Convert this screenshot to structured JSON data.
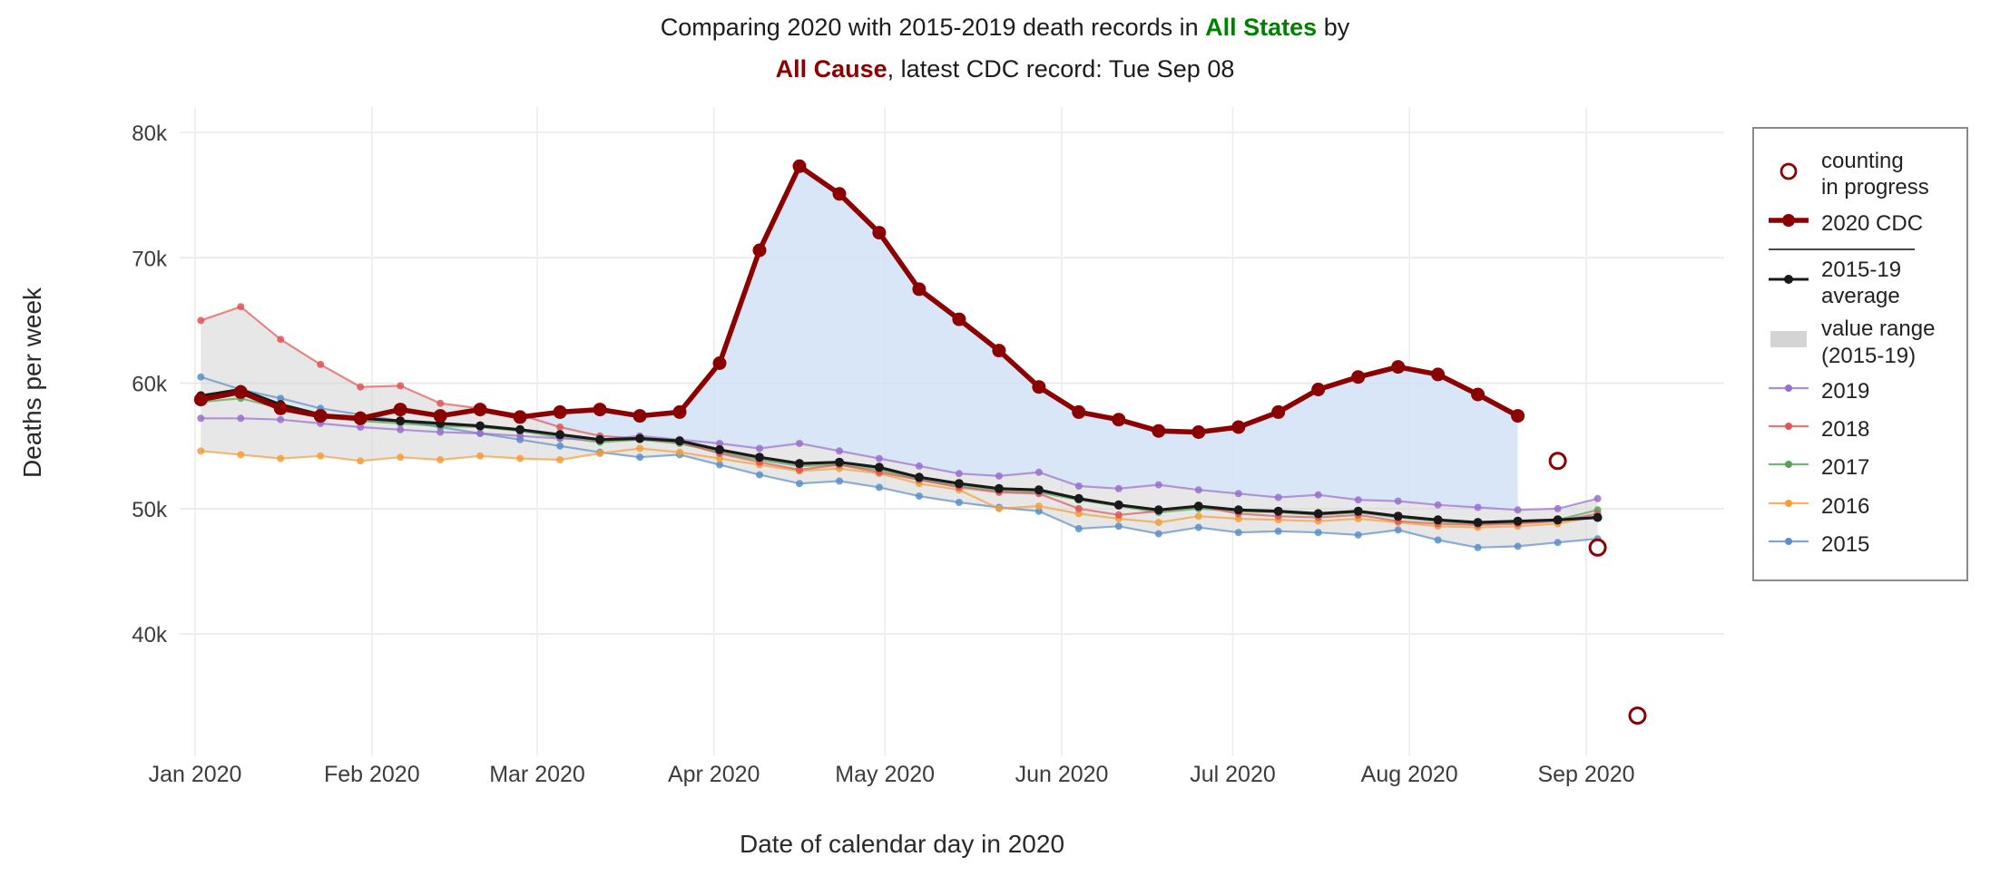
{
  "title": {
    "line1_prefix": "Comparing 2020 with 2015-2019 death records in ",
    "line1_highlight": "All States",
    "line1_suffix": " by",
    "line2_highlight": "All Cause",
    "line2_suffix": ", latest CDC record: Tue Sep 08",
    "states_color": "#008000",
    "cause_color": "#8B0000"
  },
  "legend": {
    "position": "right",
    "items": [
      {
        "id": "counting-in-progress",
        "label": "counting\nin progress",
        "marker": "open-circle",
        "color": "#8B0000"
      },
      {
        "id": "2020-cdc",
        "label": "2020 CDC",
        "marker": "thick-line-dot",
        "color": "#8B0000"
      },
      {
        "id": "divider",
        "label": "",
        "marker": "divider",
        "color": "#4a4a4a"
      },
      {
        "id": "2015-19-average",
        "label": "2015-19\naverage",
        "marker": "line-dot",
        "color": "#1a1a1a"
      },
      {
        "id": "value-range",
        "label": "value range\n(2015-19)",
        "marker": "band",
        "color": "#d4d4d4"
      },
      {
        "id": "2019",
        "label": "2019",
        "marker": "thin-line-dot",
        "color": "#9a6fce"
      },
      {
        "id": "2018",
        "label": "2018",
        "marker": "thin-line-dot",
        "color": "#e05555"
      },
      {
        "id": "2017",
        "label": "2017",
        "marker": "thin-line-dot",
        "color": "#52a352"
      },
      {
        "id": "2016",
        "label": "2016",
        "marker": "thin-line-dot",
        "color": "#f59e38"
      },
      {
        "id": "2015",
        "label": "2015",
        "marker": "thin-line-dot",
        "color": "#5b8fc9"
      }
    ]
  },
  "chart_data": {
    "type": "line",
    "title": "Comparing 2020 with 2015-2019 death records in All States by All Cause, latest CDC record: Tue Sep 08",
    "xlabel": "Date of calendar day in 2020",
    "ylabel": "Deaths per week",
    "y_unit": "thousands of deaths per week",
    "ylim_thousands": [
      32,
      82
    ],
    "grid": true,
    "legend_position": "right",
    "y_ticks": [
      {
        "value": 40,
        "label": "40k"
      },
      {
        "value": 50,
        "label": "50k"
      },
      {
        "value": 60,
        "label": "60k"
      },
      {
        "value": 70,
        "label": "70k"
      },
      {
        "value": 80,
        "label": "80k"
      }
    ],
    "x_ticks": [
      {
        "day": 0,
        "label": "Jan 2020"
      },
      {
        "day": 31,
        "label": "Feb 2020"
      },
      {
        "day": 60,
        "label": "Mar 2020"
      },
      {
        "day": 91,
        "label": "Apr 2020"
      },
      {
        "day": 121,
        "label": "May 2020"
      },
      {
        "day": 152,
        "label": "Jun 2020"
      },
      {
        "day": 182,
        "label": "Jul 2020"
      },
      {
        "day": 213,
        "label": "Aug 2020"
      },
      {
        "day": 244,
        "label": "Sep 2020"
      }
    ],
    "x_start_day": 1,
    "x_step_days": 7,
    "series": [
      {
        "name": "2020 CDC",
        "role": "current",
        "color": "#8B0000",
        "values_thousands": [
          58.7,
          59.3,
          58.0,
          57.4,
          57.2,
          57.9,
          57.4,
          57.9,
          57.3,
          57.7,
          57.9,
          57.4,
          57.7,
          61.6,
          70.6,
          77.3,
          75.1,
          72.0,
          67.5,
          65.1,
          62.6,
          59.7,
          57.7,
          57.1,
          56.2,
          56.1,
          56.5,
          57.7,
          59.5,
          60.5,
          61.3,
          60.7,
          59.1,
          57.4
        ]
      },
      {
        "name": "2015-19 average",
        "role": "average",
        "color": "#1a1a1a",
        "values_thousands": [
          59.0,
          59.5,
          58.3,
          57.5,
          57.2,
          57.0,
          56.8,
          56.6,
          56.3,
          55.9,
          55.5,
          55.6,
          55.4,
          54.7,
          54.1,
          53.6,
          53.7,
          53.3,
          52.5,
          52.0,
          51.6,
          51.5,
          50.8,
          50.3,
          49.9,
          50.2,
          49.9,
          49.8,
          49.6,
          49.8,
          49.4,
          49.1,
          48.9,
          49.0,
          49.1,
          49.3
        ]
      },
      {
        "name": "2019",
        "role": "year",
        "color": "#9a6fce",
        "values_thousands": [
          57.2,
          57.2,
          57.1,
          56.8,
          56.5,
          56.3,
          56.1,
          56.0,
          55.8,
          55.6,
          55.5,
          55.8,
          55.5,
          55.2,
          54.8,
          55.2,
          54.6,
          54.0,
          53.4,
          52.8,
          52.6,
          52.9,
          51.8,
          51.6,
          51.9,
          51.5,
          51.2,
          50.9,
          51.1,
          50.7,
          50.6,
          50.3,
          50.1,
          49.9,
          50.0,
          50.8
        ]
      },
      {
        "name": "2018",
        "role": "year",
        "color": "#e05555",
        "values_thousands": [
          65.0,
          66.1,
          63.5,
          61.5,
          59.7,
          59.8,
          58.4,
          58.0,
          57.5,
          56.5,
          55.8,
          55.6,
          55.3,
          54.4,
          53.7,
          53.1,
          53.5,
          52.9,
          52.3,
          51.7,
          51.3,
          51.2,
          50.0,
          49.5,
          49.8,
          50.2,
          49.6,
          49.4,
          49.3,
          49.5,
          49.0,
          48.8,
          48.7,
          48.8,
          49.0,
          49.6
        ]
      },
      {
        "name": "2017",
        "role": "year",
        "color": "#52a352",
        "values_thousands": [
          58.5,
          58.8,
          58.0,
          57.3,
          57.0,
          56.8,
          56.6,
          56.5,
          56.2,
          55.7,
          55.3,
          55.5,
          55.2,
          54.5,
          53.9,
          53.4,
          53.5,
          53.1,
          52.3,
          51.8,
          51.4,
          51.3,
          50.7,
          50.2,
          49.7,
          50.0,
          49.8,
          49.7,
          49.5,
          49.7,
          49.3,
          49.0,
          48.8,
          48.9,
          49.1,
          49.9
        ]
      },
      {
        "name": "2016",
        "role": "year",
        "color": "#f59e38",
        "values_thousands": [
          54.6,
          54.3,
          54.0,
          54.2,
          53.8,
          54.1,
          53.9,
          54.2,
          54.0,
          53.9,
          54.4,
          54.8,
          54.5,
          54.0,
          53.5,
          53.0,
          53.2,
          52.8,
          52.0,
          51.5,
          50.0,
          50.2,
          49.6,
          49.2,
          48.9,
          49.4,
          49.2,
          49.1,
          49.0,
          49.2,
          48.9,
          48.6,
          48.5,
          48.6,
          48.8,
          49.4
        ]
      },
      {
        "name": "2015",
        "role": "year",
        "color": "#5b8fc9",
        "values_thousands": [
          60.5,
          59.5,
          58.8,
          58.0,
          57.5,
          57.0,
          56.5,
          56.0,
          55.5,
          55.0,
          54.5,
          54.1,
          54.3,
          53.5,
          52.7,
          52.0,
          52.2,
          51.7,
          51.0,
          50.5,
          50.1,
          49.8,
          48.4,
          48.6,
          48.0,
          48.5,
          48.1,
          48.2,
          48.1,
          47.9,
          48.3,
          47.5,
          46.9,
          47.0,
          47.3,
          47.6
        ]
      }
    ],
    "counting_in_progress": {
      "label": "counting in progress",
      "color": "#8B0000",
      "days": [
        239,
        246,
        253
      ],
      "values_thousands": [
        53.8,
        46.9,
        33.5
      ]
    },
    "value_range": {
      "label": "value range (2015-19)",
      "fill": "#d4d4d4",
      "derived_from": [
        "2019",
        "2018",
        "2017",
        "2016",
        "2015"
      ]
    },
    "excess_fill": "#cfe0f5"
  }
}
